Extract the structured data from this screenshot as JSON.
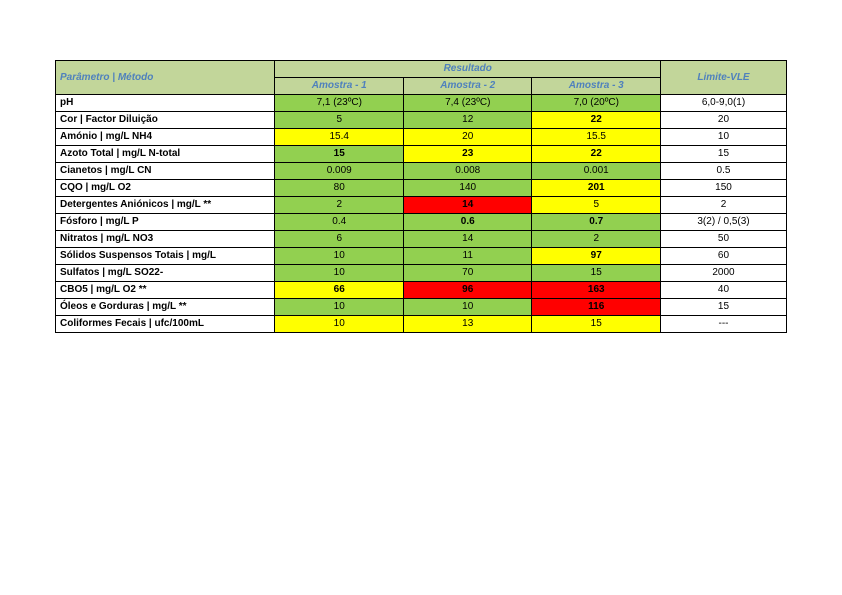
{
  "colors": {
    "header_bg": "#c2d69a",
    "header_text": "#4f81bd",
    "green": "#92d050",
    "yellow": "#ffff00",
    "red": "#ff0000",
    "white": "#ffffff",
    "border": "#000000"
  },
  "header": {
    "param": "Parâmetro | Método",
    "resultado": "Resultado",
    "a1": "Amostra - 1",
    "a2": "Amostra - 2",
    "a3": "Amostra - 3",
    "limite": "Limite-VLE"
  },
  "rows": [
    {
      "param": "pH",
      "a1": {
        "v": "7,1 (23ºC)",
        "c": "green",
        "b": false
      },
      "a2": {
        "v": "7,4 (23ºC)",
        "c": "green",
        "b": false
      },
      "a3": {
        "v": "7,0 (20ºC)",
        "c": "green",
        "b": false
      },
      "lim": "6,0-9,0(1)"
    },
    {
      "param": "Cor | Factor Diluição",
      "a1": {
        "v": "5",
        "c": "green",
        "b": false
      },
      "a2": {
        "v": "12",
        "c": "green",
        "b": false
      },
      "a3": {
        "v": "22",
        "c": "yellow",
        "b": true
      },
      "lim": "20"
    },
    {
      "param": "Amónio | mg/L NH4",
      "a1": {
        "v": "15.4",
        "c": "yellow",
        "b": false
      },
      "a2": {
        "v": "20",
        "c": "yellow",
        "b": false
      },
      "a3": {
        "v": "15.5",
        "c": "yellow",
        "b": false
      },
      "lim": "10"
    },
    {
      "param": "Azoto Total | mg/L N-total",
      "a1": {
        "v": "15",
        "c": "green",
        "b": true
      },
      "a2": {
        "v": "23",
        "c": "yellow",
        "b": true
      },
      "a3": {
        "v": "22",
        "c": "yellow",
        "b": true
      },
      "lim": "15"
    },
    {
      "param": "Cianetos | mg/L CN",
      "a1": {
        "v": "0.009",
        "c": "green",
        "b": false
      },
      "a2": {
        "v": "0.008",
        "c": "green",
        "b": false
      },
      "a3": {
        "v": "0.001",
        "c": "green",
        "b": false
      },
      "lim": "0.5"
    },
    {
      "param": "CQO | mg/L O2",
      "a1": {
        "v": "80",
        "c": "green",
        "b": false
      },
      "a2": {
        "v": "140",
        "c": "green",
        "b": false
      },
      "a3": {
        "v": "201",
        "c": "yellow",
        "b": true
      },
      "lim": "150"
    },
    {
      "param": "Detergentes Aniónicos | mg/L **",
      "a1": {
        "v": "2",
        "c": "green",
        "b": false
      },
      "a2": {
        "v": "14",
        "c": "red",
        "b": true
      },
      "a3": {
        "v": "5",
        "c": "yellow",
        "b": false
      },
      "lim": "2"
    },
    {
      "param": "Fósforo | mg/L P",
      "a1": {
        "v": "0.4",
        "c": "green",
        "b": false
      },
      "a2": {
        "v": "0.6",
        "c": "green",
        "b": true
      },
      "a3": {
        "v": "0.7",
        "c": "green",
        "b": true
      },
      "lim": "3(2) / 0,5(3)"
    },
    {
      "param": "Nitratos | mg/L NO3",
      "a1": {
        "v": "6",
        "c": "green",
        "b": false
      },
      "a2": {
        "v": "14",
        "c": "green",
        "b": false
      },
      "a3": {
        "v": "2",
        "c": "green",
        "b": false
      },
      "lim": "50"
    },
    {
      "param": "Sólidos Suspensos Totais | mg/L",
      "a1": {
        "v": "10",
        "c": "green",
        "b": false
      },
      "a2": {
        "v": "11",
        "c": "green",
        "b": false
      },
      "a3": {
        "v": "97",
        "c": "yellow",
        "b": true
      },
      "lim": "60"
    },
    {
      "param": "Sulfatos | mg/L SO22-",
      "a1": {
        "v": "10",
        "c": "green",
        "b": false
      },
      "a2": {
        "v": "70",
        "c": "green",
        "b": false
      },
      "a3": {
        "v": "15",
        "c": "green",
        "b": false
      },
      "lim": "2000"
    },
    {
      "param": "CBO5 | mg/L O2 **",
      "a1": {
        "v": "66",
        "c": "yellow",
        "b": true
      },
      "a2": {
        "v": "96",
        "c": "red",
        "b": true
      },
      "a3": {
        "v": "163",
        "c": "red",
        "b": true
      },
      "lim": "40"
    },
    {
      "param": "Óleos e Gorduras | mg/L **",
      "a1": {
        "v": "10",
        "c": "green",
        "b": false
      },
      "a2": {
        "v": "10",
        "c": "green",
        "b": false
      },
      "a3": {
        "v": "116",
        "c": "red",
        "b": true
      },
      "lim": "15"
    },
    {
      "param": "Coliformes Fecais | ufc/100mL",
      "a1": {
        "v": "10",
        "c": "yellow",
        "b": false
      },
      "a2": {
        "v": "13",
        "c": "yellow",
        "b": false
      },
      "a3": {
        "v": "15",
        "c": "yellow",
        "b": false
      },
      "lim": "---"
    }
  ]
}
